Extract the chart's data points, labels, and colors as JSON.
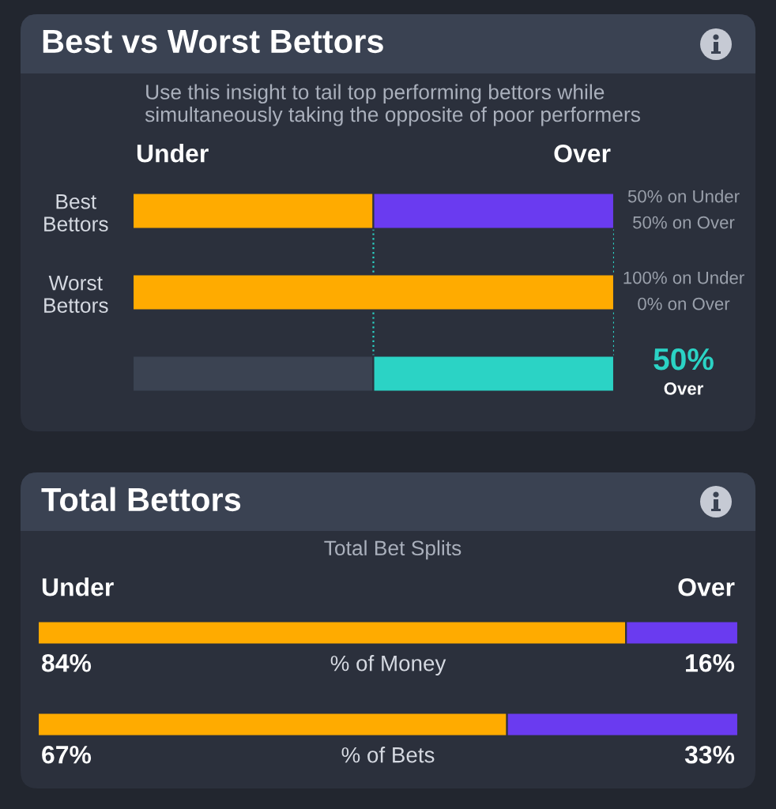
{
  "chart_data": [
    {
      "type": "bar",
      "orientation": "horizontal",
      "stacked": true,
      "title": "Best vs Worst Bettors",
      "subtitle": "Use this insight to tail top performing bettors while\nsimultaneously taking the opposite of poor performers",
      "categories": [
        "Best\nBettors",
        "Worst\nBettors",
        null
      ],
      "xlim": [
        0,
        100
      ],
      "tick_labels": "y",
      "series": [
        {
          "name": "Under",
          "colors": [
            "#ffab00",
            "#ffab00",
            "#3b4352"
          ],
          "values": [
            50,
            100,
            50
          ],
          "value_labels": [
            "50% on Under",
            "100% on Under",
            null
          ]
        },
        {
          "name": "Over",
          "colors": [
            "#6a3bf0",
            "#6a3bf0",
            "#2bd3c5"
          ],
          "values": [
            50,
            0,
            50
          ],
          "value_labels": [
            "50% on Over",
            "0% on Over",
            "50%\nOver"
          ]
        }
      ],
      "ref_lines": [
        {
          "axis": "x",
          "value": 50,
          "color": "#2bd3c5",
          "line_style": "dotted"
        },
        {
          "axis": "x",
          "value": 100,
          "color": "#2bd3c5",
          "line_style": "dotted"
        }
      ]
    },
    {
      "type": "bar",
      "orientation": "horizontal",
      "stacked": true,
      "title": "Total Bettors",
      "subtitle": "Total Bet Splits",
      "categories": [
        "% of Money",
        "% of Bets"
      ],
      "xlim": [
        0,
        100
      ],
      "tick_labels": false,
      "series": [
        {
          "name": "Under",
          "color": "#ffab00",
          "values": [
            84,
            67
          ],
          "value_labels": [
            "84%",
            "67%"
          ]
        },
        {
          "name": "Over",
          "color": "#6a3bf0",
          "values": [
            16,
            33
          ],
          "value_labels": [
            "16%",
            "33%"
          ]
        }
      ]
    }
  ]
}
